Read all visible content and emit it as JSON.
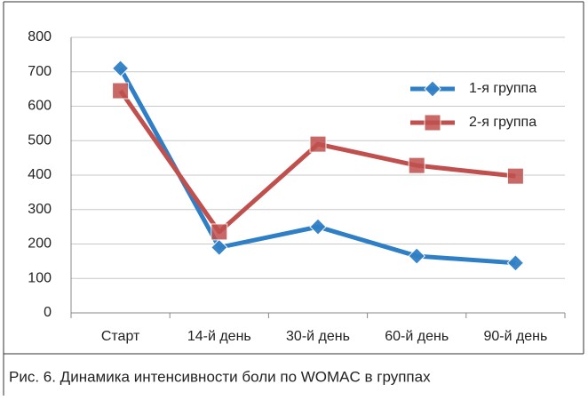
{
  "chart_data": {
    "type": "line",
    "caption": "Рис. 6. Динамика интенсивности боли по WOMAC в группах",
    "categories": [
      "Старт",
      "14-й день",
      "30-й день",
      "60-й день",
      "90-й день"
    ],
    "series": [
      {
        "name": "1-я группа",
        "color": "#2f7fc6",
        "marker": "diamond",
        "values": [
          710,
          190,
          250,
          165,
          145
        ]
      },
      {
        "name": "2-я группа",
        "color": "#c0504d",
        "marker": "square",
        "values": [
          645,
          235,
          490,
          428,
          397
        ]
      }
    ],
    "ylim": [
      0,
      800
    ],
    "yticks": [
      0,
      100,
      200,
      300,
      400,
      500,
      600,
      700,
      800
    ],
    "grid": true,
    "legend": "upper right"
  }
}
